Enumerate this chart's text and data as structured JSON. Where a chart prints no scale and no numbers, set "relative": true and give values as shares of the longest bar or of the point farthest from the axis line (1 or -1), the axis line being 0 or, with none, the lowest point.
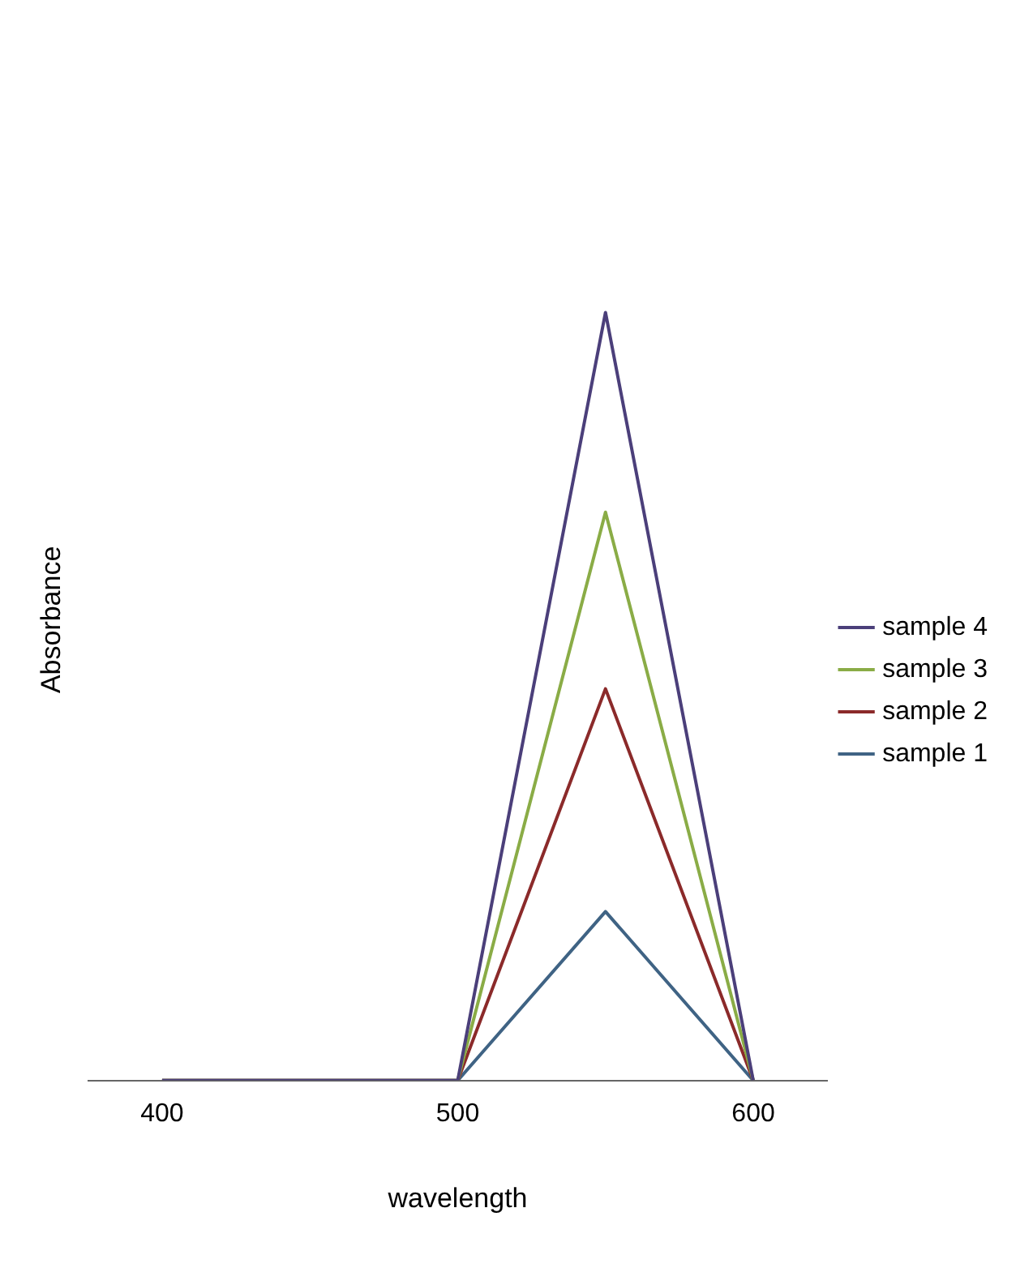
{
  "chart_data": {
    "type": "line",
    "xlabel": "wavelength",
    "ylabel": "Absorbance",
    "relative": true,
    "x": [
      400,
      500,
      550,
      600
    ],
    "xlim": [
      375,
      625
    ],
    "xticks": [
      400,
      500,
      600
    ],
    "grid": false,
    "legend": "right",
    "marker": "none",
    "line_style": "solid",
    "series": [
      {
        "name": "sample 4",
        "color": "#4b3f7a",
        "values": [
          0,
          0,
          1,
          0
        ]
      },
      {
        "name": "sample 3",
        "color": "#8aac46",
        "values": [
          0,
          0,
          0.74,
          0
        ]
      },
      {
        "name": "sample 2",
        "color": "#8b2a2a",
        "values": [
          0,
          0,
          0.51,
          0
        ]
      },
      {
        "name": "sample 1",
        "color": "#3f6384",
        "values": [
          0,
          0,
          0.22,
          0
        ]
      }
    ]
  }
}
